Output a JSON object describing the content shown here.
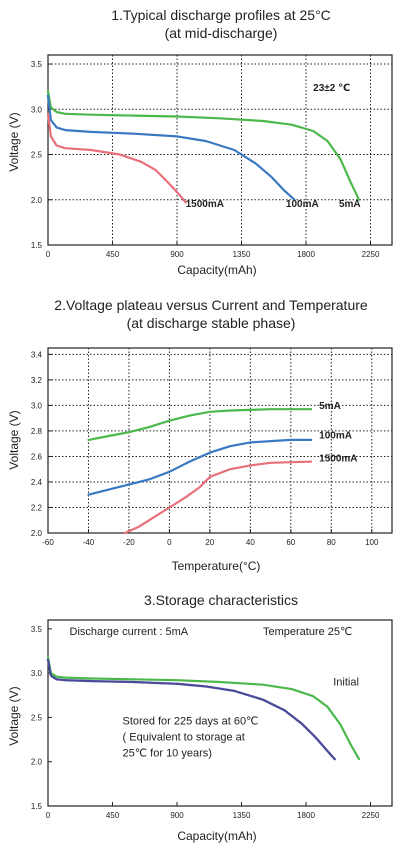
{
  "colors": {
    "green": "#4cb84c",
    "blue": "#3a78c2",
    "pink": "#e8707a",
    "purple": "#4a4a9a",
    "grid": "#222222",
    "text": "#222222"
  },
  "chart_data": [
    {
      "type": "line",
      "title": "1.Typical discharge profiles at 25°C",
      "subtitle": "(at mid-discharge)",
      "xlabel": "Capacity(mAh)",
      "ylabel": "Voltage (V)",
      "xlim": [
        0,
        2400
      ],
      "ylim": [
        1.5,
        3.6
      ],
      "xticks": [
        0,
        450,
        900,
        1350,
        1800,
        2250
      ],
      "xtick_labels": [
        "0",
        "450",
        "900",
        "1350",
        "1800",
        "2250"
      ],
      "yticks": [
        1.5,
        2.0,
        2.5,
        3.0,
        3.5
      ],
      "ytick_labels": [
        "1.5",
        "2.0",
        "2.5",
        "3.0",
        "3.5"
      ],
      "grid": true,
      "annotations": [
        {
          "text": "23±2 ℃",
          "x": 1850,
          "y": 3.2
        },
        {
          "text": "1500mA",
          "x": 960,
          "y": 1.92
        },
        {
          "text": "100mA",
          "x": 1660,
          "y": 1.92
        },
        {
          "text": "5mA",
          "x": 2030,
          "y": 1.92
        }
      ],
      "series": [
        {
          "label": "5mA",
          "color": "green",
          "x": [
            0,
            20,
            60,
            120,
            300,
            600,
            900,
            1200,
            1500,
            1700,
            1850,
            1950,
            2040,
            2110,
            2170
          ],
          "y": [
            3.2,
            3.02,
            2.97,
            2.95,
            2.94,
            2.93,
            2.92,
            2.9,
            2.87,
            2.83,
            2.76,
            2.65,
            2.45,
            2.2,
            2.0
          ]
        },
        {
          "label": "100mA",
          "color": "blue",
          "x": [
            0,
            20,
            60,
            120,
            300,
            600,
            900,
            1100,
            1300,
            1450,
            1560,
            1650,
            1720
          ],
          "y": [
            3.15,
            2.88,
            2.8,
            2.77,
            2.75,
            2.73,
            2.7,
            2.65,
            2.55,
            2.4,
            2.25,
            2.1,
            2.0
          ]
        },
        {
          "label": "1500mA",
          "color": "pink",
          "x": [
            0,
            20,
            60,
            120,
            300,
            500,
            650,
            750,
            820,
            880,
            930,
            960
          ],
          "y": [
            2.95,
            2.7,
            2.6,
            2.57,
            2.55,
            2.5,
            2.42,
            2.33,
            2.22,
            2.12,
            2.03,
            1.97
          ]
        }
      ]
    },
    {
      "type": "line",
      "title": "2.Voltage plateau versus Current and Temperature",
      "subtitle": "(at discharge stable phase)",
      "xlabel": "Temperature(°C)",
      "ylabel": "Voltage (V)",
      "xlim": [
        -60,
        110
      ],
      "ylim": [
        2.0,
        3.45
      ],
      "xticks": [
        -60,
        -40,
        -20,
        0,
        20,
        40,
        60,
        80,
        100
      ],
      "xtick_labels": [
        "-60",
        "-40",
        "-20",
        "0",
        "20",
        "40",
        "60",
        "80",
        "100"
      ],
      "yticks": [
        2.0,
        2.2,
        2.4,
        2.6,
        2.8,
        3.0,
        3.2,
        3.4
      ],
      "ytick_labels": [
        "2.0",
        "2.2",
        "2.4",
        "2.6",
        "2.8",
        "3.0",
        "3.2",
        "3.4"
      ],
      "grid": true,
      "annotations": [
        {
          "text": "5mA",
          "x": 74,
          "y": 2.97
        },
        {
          "text": "100mA",
          "x": 74,
          "y": 2.74
        },
        {
          "text": "1500mA",
          "x": 74,
          "y": 2.56
        }
      ],
      "series": [
        {
          "label": "5mA",
          "color": "green",
          "x": [
            -40,
            -30,
            -20,
            -10,
            0,
            10,
            20,
            30,
            40,
            50,
            60,
            70
          ],
          "y": [
            2.73,
            2.76,
            2.79,
            2.83,
            2.88,
            2.92,
            2.95,
            2.96,
            2.965,
            2.97,
            2.97,
            2.97
          ]
        },
        {
          "label": "100mA",
          "color": "blue",
          "x": [
            -40,
            -30,
            -20,
            -10,
            0,
            10,
            20,
            30,
            40,
            50,
            60,
            70
          ],
          "y": [
            2.3,
            2.34,
            2.38,
            2.42,
            2.48,
            2.56,
            2.63,
            2.68,
            2.71,
            2.72,
            2.73,
            2.73
          ]
        },
        {
          "label": "1500mA",
          "color": "pink",
          "x": [
            -22,
            -15,
            -8,
            0,
            8,
            15,
            20,
            30,
            40,
            50,
            60,
            70
          ],
          "y": [
            2.0,
            2.05,
            2.12,
            2.2,
            2.28,
            2.36,
            2.44,
            2.5,
            2.53,
            2.55,
            2.555,
            2.56
          ]
        }
      ]
    },
    {
      "type": "line",
      "title": "3.Storage characteristics",
      "xlabel": "Capacity(mAh)",
      "ylabel": "Voltage (V)",
      "xlim": [
        0,
        2400
      ],
      "ylim": [
        1.5,
        3.6
      ],
      "xticks": [
        0,
        450,
        900,
        1350,
        1800,
        2250
      ],
      "xtick_labels": [
        "0",
        "450",
        "900",
        "1350",
        "1800",
        "2250"
      ],
      "yticks": [
        1.5,
        2.0,
        2.5,
        3.0,
        3.5
      ],
      "ytick_labels": [
        "1.5",
        "2.0",
        "2.5",
        "3.0",
        "3.5"
      ],
      "grid": false,
      "annotations": [
        {
          "text": "Discharge current : 5mA",
          "x": 150,
          "y": 3.43
        },
        {
          "text": "Temperature  25℃",
          "x": 1500,
          "y": 3.43
        },
        {
          "text": "Initial",
          "x": 1990,
          "y": 2.86
        },
        {
          "text": "Stored for 225 days at 60℃",
          "x": 520,
          "y": 2.42
        },
        {
          "text": "( Equivalent to storage at",
          "x": 520,
          "y": 2.24
        },
        {
          "text": "25℃ for 10 years)",
          "x": 520,
          "y": 2.06
        }
      ],
      "series": [
        {
          "label": "Initial",
          "color": "green",
          "style": "solid",
          "x": [
            0,
            20,
            60,
            120,
            300,
            600,
            900,
            1200,
            1500,
            1700,
            1850,
            1950,
            2040,
            2110,
            2170
          ],
          "y": [
            3.18,
            3.0,
            2.96,
            2.95,
            2.94,
            2.93,
            2.92,
            2.9,
            2.87,
            2.82,
            2.74,
            2.62,
            2.42,
            2.2,
            2.03
          ]
        },
        {
          "label": "Stored for 225 days at 60℃",
          "color": "purple",
          "style": "dotted",
          "x": [
            0,
            20,
            60,
            120,
            300,
            600,
            900,
            1100,
            1300,
            1500,
            1650,
            1770,
            1870,
            1950,
            2000
          ],
          "y": [
            3.15,
            2.97,
            2.93,
            2.92,
            2.91,
            2.9,
            2.88,
            2.85,
            2.8,
            2.7,
            2.58,
            2.43,
            2.27,
            2.12,
            2.03
          ]
        }
      ]
    }
  ]
}
